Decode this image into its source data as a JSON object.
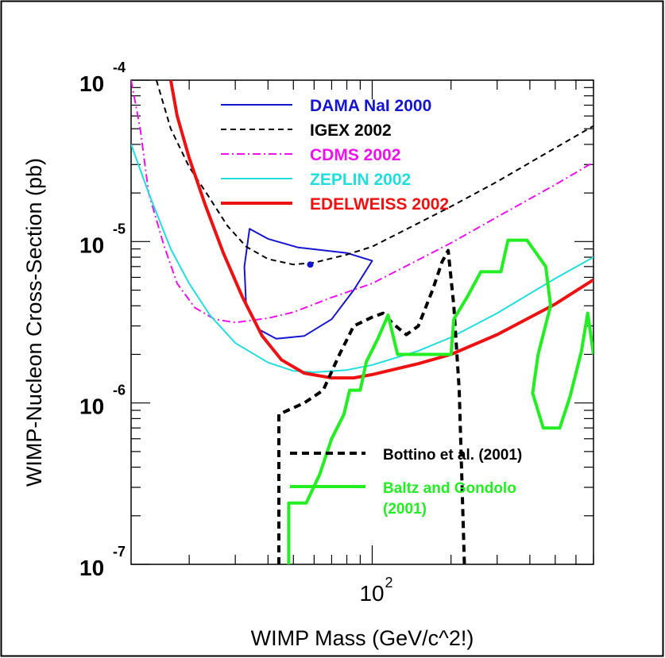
{
  "chart_data": {
    "type": "line",
    "xlabel": "WIMP Mass (GeV/c^2!)",
    "ylabel": "WIMP-Nucleon Cross-Section (pb)",
    "x_scale": "log",
    "y_scale": "log",
    "xlim": [
      12,
      700
    ],
    "ylim": [
      1e-07,
      0.0001
    ],
    "grid": false,
    "x_tick_labels": [
      {
        "value": 100,
        "base": "10",
        "exp": "2"
      }
    ],
    "y_tick_labels": [
      {
        "value": 0.0001,
        "base": "10",
        "exp": "-4"
      },
      {
        "value": 1e-05,
        "base": "10",
        "exp": "-5"
      },
      {
        "value": 1e-06,
        "base": "10",
        "exp": "-6"
      },
      {
        "value": 1e-07,
        "base": "10",
        "exp": "-7"
      }
    ],
    "legend_position": "top-center",
    "series": [
      {
        "name": "DAMA NaI 2000",
        "color": "#1515d0",
        "style": "solid",
        "width": 2,
        "closed": true,
        "points": [
          [
            34,
            1.2e-05
          ],
          [
            40,
            1.04e-05
          ],
          [
            52,
            9.2e-06
          ],
          [
            80,
            8.5e-06
          ],
          [
            100,
            7.6e-06
          ],
          [
            85,
            5e-06
          ],
          [
            70,
            3.3e-06
          ],
          [
            55,
            2.6e-06
          ],
          [
            43,
            2.5e-06
          ],
          [
            37,
            2.85e-06
          ],
          [
            33,
            4e-06
          ],
          [
            32.5,
            7e-06
          ]
        ]
      },
      {
        "name": "IGEX 2002",
        "color": "#000000",
        "style": "dashed",
        "width": 2,
        "points": [
          [
            15,
            0.0001
          ],
          [
            17,
            5e-05
          ],
          [
            20,
            2.9e-05
          ],
          [
            24,
            1.85e-05
          ],
          [
            28,
            1.25e-05
          ],
          [
            33,
            9.3e-06
          ],
          [
            40,
            7.8e-06
          ],
          [
            50,
            7.2e-06
          ],
          [
            60,
            7.4e-06
          ],
          [
            80,
            8.3e-06
          ],
          [
            100,
            9.3e-06
          ],
          [
            150,
            1.3e-05
          ],
          [
            200,
            1.65e-05
          ],
          [
            300,
            2.35e-05
          ],
          [
            500,
            3.8e-05
          ],
          [
            700,
            5.2e-05
          ]
        ]
      },
      {
        "name": "CDMS 2002",
        "color": "#ee11ee",
        "style": "dashdot",
        "width": 2,
        "points": [
          [
            12,
            0.0001
          ],
          [
            13,
            5e-05
          ],
          [
            14,
            2e-05
          ],
          [
            16,
            9.5e-06
          ],
          [
            18,
            5.5e-06
          ],
          [
            21,
            3.9e-06
          ],
          [
            25,
            3.3e-06
          ],
          [
            30,
            3.15e-06
          ],
          [
            40,
            3.35e-06
          ],
          [
            50,
            3.65e-06
          ],
          [
            70,
            4.5e-06
          ],
          [
            100,
            5.5e-06
          ],
          [
            150,
            7.7e-06
          ],
          [
            200,
            9.8e-06
          ],
          [
            300,
            1.42e-05
          ],
          [
            500,
            2.25e-05
          ],
          [
            700,
            3.1e-05
          ]
        ]
      },
      {
        "name": "ZEPLIN 2002",
        "color": "#22dddd",
        "style": "solid",
        "width": 2,
        "points": [
          [
            12,
            4e-05
          ],
          [
            14,
            2e-05
          ],
          [
            17,
            9e-06
          ],
          [
            20,
            5.5e-06
          ],
          [
            24,
            3.5e-06
          ],
          [
            30,
            2.35e-06
          ],
          [
            40,
            1.78e-06
          ],
          [
            50,
            1.58e-06
          ],
          [
            60,
            1.55e-06
          ],
          [
            80,
            1.6e-06
          ],
          [
            100,
            1.72e-06
          ],
          [
            150,
            2.1e-06
          ],
          [
            200,
            2.55e-06
          ],
          [
            300,
            3.6e-06
          ],
          [
            500,
            5.9e-06
          ],
          [
            700,
            8e-06
          ]
        ]
      },
      {
        "name": "EDELWEISS 2002",
        "color": "#ee1111",
        "style": "solid",
        "width": 4,
        "points": [
          [
            17,
            0.0001
          ],
          [
            18,
            6e-05
          ],
          [
            20,
            3.3e-05
          ],
          [
            23,
            1.7e-05
          ],
          [
            27,
            8.5e-06
          ],
          [
            32,
            4.5e-06
          ],
          [
            38,
            2.6e-06
          ],
          [
            45,
            1.85e-06
          ],
          [
            55,
            1.53e-06
          ],
          [
            70,
            1.43e-06
          ],
          [
            85,
            1.43e-06
          ],
          [
            100,
            1.5e-06
          ],
          [
            150,
            1.75e-06
          ],
          [
            200,
            2e-06
          ],
          [
            300,
            2.65e-06
          ],
          [
            500,
            4.1e-06
          ],
          [
            700,
            5.8e-06
          ]
        ]
      },
      {
        "name": "Bottino et al. (2001)",
        "color": "#000000",
        "style": "dashed",
        "width": 4,
        "points": [
          [
            44,
            1e-07
          ],
          [
            44,
            8.5e-07
          ],
          [
            55,
            1e-06
          ],
          [
            65,
            1.2e-06
          ],
          [
            75,
            2e-06
          ],
          [
            85,
            3e-06
          ],
          [
            100,
            3.4e-06
          ],
          [
            110,
            3.6e-06
          ],
          [
            120,
            3.1e-06
          ],
          [
            135,
            2.65e-06
          ],
          [
            150,
            3e-06
          ],
          [
            170,
            5e-06
          ],
          [
            185,
            7.5e-06
          ],
          [
            195,
            8.8e-06
          ],
          [
            205,
            4e-06
          ],
          [
            215,
            1.2e-06
          ],
          [
            225,
            1e-07
          ]
        ]
      },
      {
        "name": "Baltz and Gondolo (2001)",
        "color": "#22ee22",
        "style": "solid",
        "width": 4,
        "points": [
          [
            48,
            1e-07
          ],
          [
            48,
            2.4e-07
          ],
          [
            56,
            2.4e-07
          ],
          [
            63,
            3.6e-07
          ],
          [
            70,
            6e-07
          ],
          [
            78,
            8.5e-07
          ],
          [
            82,
            1.2e-06
          ],
          [
            90,
            1.2e-06
          ],
          [
            95,
            1.8e-06
          ],
          [
            105,
            2.5e-06
          ],
          [
            115,
            3.5e-06
          ],
          [
            125,
            2e-06
          ],
          [
            145,
            2e-06
          ],
          [
            200,
            2e-06
          ],
          [
            205,
            3.3e-06
          ],
          [
            230,
            4.5e-06
          ],
          [
            260,
            6.5e-06
          ],
          [
            310,
            6.5e-06
          ],
          [
            330,
            1.02e-05
          ],
          [
            390,
            1.02e-05
          ],
          [
            460,
            7e-06
          ],
          [
            480,
            4e-06
          ],
          [
            430,
            2e-06
          ],
          [
            410,
            1.15e-06
          ],
          [
            450,
            7e-07
          ],
          [
            520,
            7e-07
          ],
          [
            570,
            1.1e-06
          ],
          [
            630,
            2.1e-06
          ],
          [
            665,
            3.6e-06
          ],
          [
            700,
            2e-06
          ]
        ]
      }
    ],
    "legend_entries": [
      {
        "label": "DAMA NaI 2000",
        "color": "#1515d0",
        "style": "solid",
        "width": 2
      },
      {
        "label": "IGEX 2002",
        "color": "#000000",
        "style": "dashed",
        "width": 2
      },
      {
        "label": "CDMS 2002",
        "color": "#ee11ee",
        "style": "dashdot",
        "width": 2
      },
      {
        "label": "ZEPLIN 2002",
        "color": "#22dddd",
        "style": "solid",
        "width": 2
      },
      {
        "label": "EDELWEISS 2002",
        "color": "#ee1111",
        "style": "solid",
        "width": 4
      }
    ],
    "theory_legend_entries": [
      {
        "label_lines": [
          "Bottino et al. (2001)"
        ],
        "color": "#000000",
        "style": "dashed",
        "width": 4
      },
      {
        "label_lines": [
          "Baltz and Gondolo",
          "(2001)"
        ],
        "color": "#22ee22",
        "style": "solid",
        "width": 4
      }
    ],
    "dama_center_marker": {
      "x": 58,
      "y": 7.2e-06,
      "color": "#1515d0"
    }
  }
}
